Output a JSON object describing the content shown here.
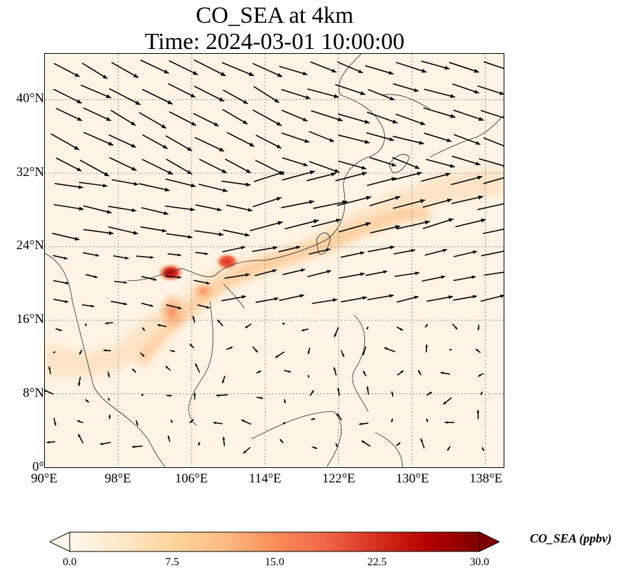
{
  "title_line1": "CO_SEA at 4km",
  "title_line2": "Time: 2024-03-01 10:00:00",
  "map": {
    "lon_range": [
      90,
      140
    ],
    "lat_range": [
      0,
      45
    ],
    "lat_ticks": [
      {
        "value": 0,
        "label": "0°"
      },
      {
        "value": 8,
        "label": "8°N"
      },
      {
        "value": 16,
        "label": "16°N"
      },
      {
        "value": 24,
        "label": "24°N"
      },
      {
        "value": 32,
        "label": "32°N"
      },
      {
        "value": 40,
        "label": "40°N"
      }
    ],
    "lon_ticks": [
      {
        "value": 90,
        "label": "90°E"
      },
      {
        "value": 98,
        "label": "98°E"
      },
      {
        "value": 106,
        "label": "106°E"
      },
      {
        "value": 114,
        "label": "114°E"
      },
      {
        "value": 122,
        "label": "122°E"
      },
      {
        "value": 130,
        "label": "130°E"
      },
      {
        "value": 138,
        "label": "138°E"
      }
    ],
    "gridlines": "dotted"
  },
  "colorbar": {
    "label": "CO_SEA (ppbv)",
    "min": 0.0,
    "max": 30.0,
    "extend": "both",
    "colormap": [
      "#fff7ec",
      "#fee8c8",
      "#fdd49e",
      "#fdbb84",
      "#fc8d59",
      "#ef6548",
      "#d7301f",
      "#b30000",
      "#7f0000"
    ],
    "ticks": [
      "0.0",
      "7.5",
      "15.0",
      "22.5",
      "30.0"
    ]
  },
  "chart_data": {
    "type": "heatmap",
    "variable": "CO_SEA",
    "units": "ppbv",
    "plume_band": [
      {
        "lon": 90,
        "lat": 14,
        "value": 4
      },
      {
        "lon": 98,
        "lat": 13,
        "value": 5
      },
      {
        "lon": 101,
        "lat": 17,
        "value": 6
      },
      {
        "lon": 104,
        "lat": 17.5,
        "value": 15
      },
      {
        "lon": 106,
        "lat": 19,
        "value": 12
      },
      {
        "lon": 109,
        "lat": 21.8,
        "value": 22
      },
      {
        "lon": 113,
        "lat": 23,
        "value": 12
      },
      {
        "lon": 118,
        "lat": 25,
        "value": 8
      },
      {
        "lon": 124,
        "lat": 28,
        "value": 6
      },
      {
        "lon": 132,
        "lat": 29,
        "value": 5
      },
      {
        "lon": 140,
        "lat": 31,
        "value": 4
      }
    ],
    "hotspots": [
      {
        "lon": 104.4,
        "lat": 21.3,
        "value": 26
      },
      {
        "lon": 110.3,
        "lat": 22.3,
        "value": 24
      },
      {
        "lon": 103.8,
        "lat": 17.5,
        "value": 15
      }
    ],
    "wind_field": "vectors; westerly/north-westerly flow north of 24°N, weak variable winds south of 16°N"
  }
}
